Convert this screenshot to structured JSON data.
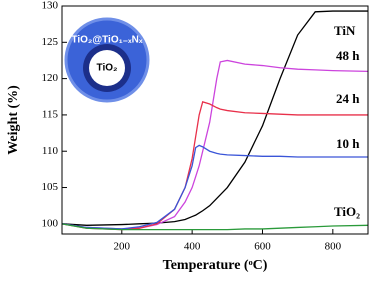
{
  "chart_data": {
    "type": "line",
    "xlabel": "Temperature (ᵒC)",
    "ylabel": "Weight (%)",
    "x": [
      30,
      100,
      200,
      250,
      300,
      350,
      380,
      400,
      410,
      420,
      430,
      450,
      470,
      480,
      500,
      550,
      600,
      650,
      700,
      750,
      800,
      900
    ],
    "xlim": [
      30,
      900
    ],
    "ylim": [
      98.6,
      130
    ],
    "xticks": [
      200,
      400,
      600,
      800
    ],
    "yticks": [
      100,
      105,
      110,
      115,
      120,
      125,
      130
    ],
    "series": [
      {
        "name": "TiN",
        "color": "#000000",
        "values": [
          100,
          99.8,
          99.9,
          100,
          100.1,
          100.3,
          100.6,
          101,
          101.2,
          101.5,
          101.8,
          102.5,
          103.5,
          104,
          105,
          108.5,
          113.5,
          120,
          126,
          129.2,
          129.3,
          129.3
        ]
      },
      {
        "name": "48 h",
        "color": "#cc44dd",
        "values": [
          100,
          99.5,
          99.3,
          99.4,
          99.9,
          101,
          103,
          105,
          106.5,
          108,
          110,
          114,
          120,
          122.3,
          122.5,
          122,
          121.8,
          121.5,
          121.3,
          121.2,
          121.1,
          121
        ]
      },
      {
        "name": "24 h",
        "color": "#e8304a",
        "values": [
          100,
          99.4,
          99.2,
          99.4,
          100,
          102,
          105,
          109,
          112,
          115,
          116.8,
          116.5,
          116,
          115.8,
          115.6,
          115.3,
          115.2,
          115.1,
          115,
          115,
          115,
          115
        ]
      },
      {
        "name": "10 h",
        "color": "#3a55d8",
        "values": [
          100,
          99.5,
          99.3,
          99.6,
          100.2,
          102,
          105,
          108,
          110.5,
          110.8,
          110.6,
          110,
          109.7,
          109.6,
          109.5,
          109.4,
          109.3,
          109.3,
          109.2,
          109.2,
          109.2,
          109.2
        ]
      },
      {
        "name": "TiO₂",
        "color": "#2a9a3a",
        "values": [
          100,
          99.4,
          99.2,
          99.2,
          99.2,
          99.2,
          99.2,
          99.2,
          99.2,
          99.2,
          99.2,
          99.2,
          99.2,
          99.2,
          99.2,
          99.3,
          99.3,
          99.4,
          99.5,
          99.6,
          99.7,
          99.8
        ]
      }
    ],
    "inset": {
      "outer_label": "TiO₂@TiO₁₋ₓNₓ",
      "inner_label": "TiO₂"
    }
  }
}
